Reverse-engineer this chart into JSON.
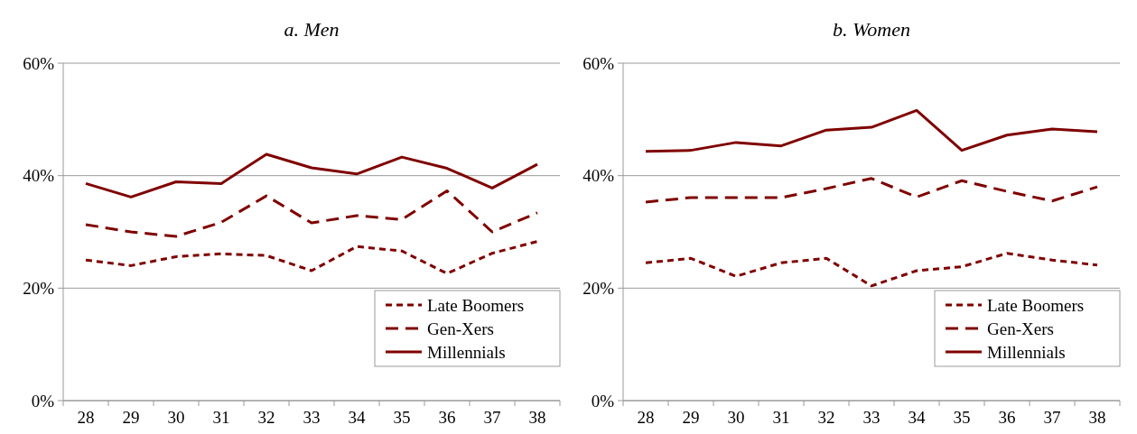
{
  "chart_data": [
    {
      "type": "line",
      "title": "a. Men",
      "categories": [
        "28",
        "29",
        "30",
        "31",
        "32",
        "33",
        "34",
        "35",
        "36",
        "37",
        "38"
      ],
      "ylim": [
        0,
        60
      ],
      "yticks": [
        {
          "value": 0,
          "label": "0%"
        },
        {
          "value": 20,
          "label": "20%"
        },
        {
          "value": 40,
          "label": "40%"
        },
        {
          "value": 60,
          "label": "60%"
        }
      ],
      "grid": "y",
      "legend": "bottom right",
      "series": [
        {
          "name": "Late Boomers",
          "color": "#7f0000",
          "line_style": "dotted",
          "values": [
            25.0,
            24.0,
            25.6,
            26.1,
            25.8,
            23.1,
            27.4,
            26.6,
            22.6,
            26.2,
            28.3
          ]
        },
        {
          "name": "Gen-Xers",
          "color": "#7f0000",
          "line_style": "dashed",
          "values": [
            31.3,
            30.0,
            29.2,
            31.7,
            36.4,
            31.6,
            32.9,
            32.2,
            37.3,
            30.0,
            33.4
          ]
        },
        {
          "name": "Millennials",
          "color": "#7f0000",
          "line_style": "solid",
          "values": [
            38.6,
            36.2,
            38.9,
            38.6,
            43.8,
            41.4,
            40.3,
            43.3,
            41.3,
            37.8,
            42.0
          ]
        }
      ]
    },
    {
      "type": "line",
      "title": "b. Women",
      "categories": [
        "28",
        "29",
        "30",
        "31",
        "32",
        "33",
        "34",
        "35",
        "36",
        "37",
        "38"
      ],
      "ylim": [
        0,
        60
      ],
      "yticks": [
        {
          "value": 0,
          "label": "0%"
        },
        {
          "value": 20,
          "label": "20%"
        },
        {
          "value": 40,
          "label": "40%"
        },
        {
          "value": 60,
          "label": "60%"
        }
      ],
      "grid": "y",
      "legend": "bottom right",
      "series": [
        {
          "name": "Late Boomers",
          "color": "#7f0000",
          "line_style": "dotted",
          "values": [
            24.5,
            25.3,
            22.1,
            24.5,
            25.3,
            20.4,
            23.1,
            23.8,
            26.2,
            25.0,
            24.1
          ]
        },
        {
          "name": "Gen-Xers",
          "color": "#7f0000",
          "line_style": "dashed",
          "values": [
            35.3,
            36.1,
            36.1,
            36.1,
            37.7,
            39.5,
            36.2,
            39.1,
            37.2,
            35.5,
            38.0
          ]
        },
        {
          "name": "Millennials",
          "color": "#7f0000",
          "line_style": "solid",
          "values": [
            44.3,
            44.5,
            45.9,
            45.3,
            48.1,
            48.6,
            51.6,
            44.5,
            47.2,
            48.3,
            47.8
          ]
        }
      ]
    }
  ]
}
